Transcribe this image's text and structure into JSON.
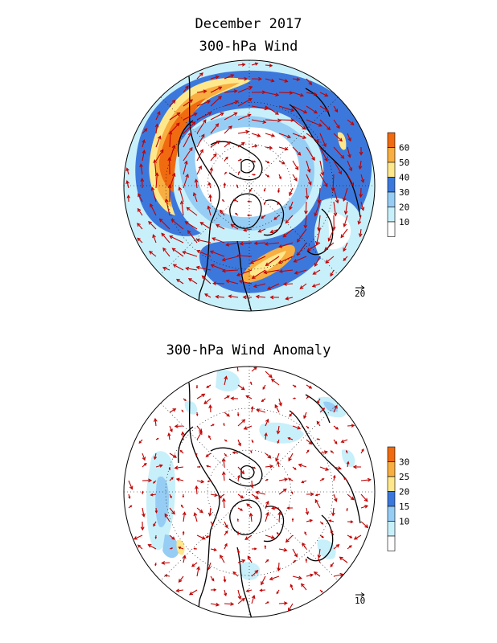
{
  "titles": {
    "main": "December 2017",
    "panel1": "300-hPa Wind",
    "panel2": "300-hPa Wind Anomaly"
  },
  "panel1": {
    "colorbar": {
      "labels": [
        "60",
        "50",
        "40",
        "30",
        "20",
        "10"
      ],
      "colors": [
        "#f06a10",
        "#f8ae40",
        "#ffe88c",
        "#3c78dc",
        "#96cdf5",
        "#c8f0fa",
        "#ffffff"
      ]
    },
    "vector_reference": "20",
    "fill_palette": {
      "white": "#ffffff",
      "pale": "#c8f0fa",
      "light": "#96cdf5",
      "blue": "#3c78dc",
      "yellow": "#ffe88c",
      "light_orange": "#f8ae40",
      "orange": "#f06a10"
    }
  },
  "panel2": {
    "colorbar": {
      "labels": [
        "30",
        "25",
        "20",
        "15",
        "10"
      ],
      "colors": [
        "#f06a10",
        "#f8ae40",
        "#ffe88c",
        "#3c78dc",
        "#96cdf5",
        "#c8f0fa",
        "#ffffff"
      ]
    },
    "vector_reference": "10"
  },
  "colors": {
    "arrow": "#c00000",
    "coast": "#000000",
    "grid": "#000000"
  }
}
